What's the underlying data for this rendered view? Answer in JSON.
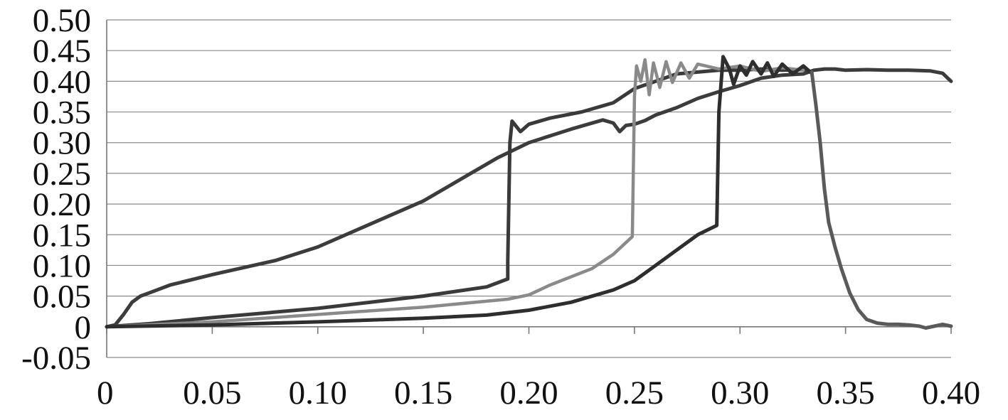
{
  "chart_data": {
    "type": "line",
    "title": "",
    "xlabel": "",
    "ylabel": "",
    "xlim": [
      0,
      0.4
    ],
    "ylim": [
      -0.05,
      0.5
    ],
    "grid": "horizontal",
    "legend": "none",
    "x_ticks": [
      "0",
      "0.05",
      "0.10",
      "0.15",
      "0.20",
      "0.25",
      "0.30",
      "0.35",
      "0.40"
    ],
    "x_tick_values": [
      0,
      0.05,
      0.1,
      0.15,
      0.2,
      0.25,
      0.3,
      0.35,
      0.4
    ],
    "y_ticks": [
      "0.50",
      "0.45",
      "0.40",
      "0.35",
      "0.30",
      "0.25",
      "0.20",
      "0.15",
      "0.10",
      "0.05",
      "0",
      "-0.05"
    ],
    "y_tick_values": [
      0.5,
      0.45,
      0.4,
      0.35,
      0.3,
      0.25,
      0.2,
      0.15,
      0.1,
      0.05,
      0,
      -0.05
    ],
    "series": [
      {
        "color": "#3c3c3c",
        "points": [
          [
            0,
            0
          ],
          [
            0.004,
            0.003
          ],
          [
            0.008,
            0.02
          ],
          [
            0.012,
            0.04
          ],
          [
            0.016,
            0.05
          ],
          [
            0.02,
            0.055
          ],
          [
            0.03,
            0.068
          ],
          [
            0.05,
            0.085
          ],
          [
            0.08,
            0.108
          ],
          [
            0.1,
            0.13
          ],
          [
            0.12,
            0.16
          ],
          [
            0.15,
            0.205
          ],
          [
            0.17,
            0.245
          ],
          [
            0.185,
            0.275
          ],
          [
            0.2,
            0.3
          ],
          [
            0.22,
            0.322
          ],
          [
            0.235,
            0.337
          ],
          [
            0.24,
            0.332
          ],
          [
            0.243,
            0.318
          ],
          [
            0.246,
            0.328
          ],
          [
            0.25,
            0.33
          ],
          [
            0.255,
            0.336
          ],
          [
            0.26,
            0.345
          ],
          [
            0.27,
            0.357
          ],
          [
            0.28,
            0.372
          ],
          [
            0.29,
            0.383
          ],
          [
            0.3,
            0.393
          ],
          [
            0.31,
            0.405
          ],
          [
            0.32,
            0.41
          ],
          [
            0.33,
            0.412
          ],
          [
            0.335,
            0.418
          ],
          [
            0.34,
            0.42
          ],
          [
            0.345,
            0.42
          ],
          [
            0.35,
            0.418
          ],
          [
            0.36,
            0.419
          ],
          [
            0.37,
            0.418
          ],
          [
            0.38,
            0.418
          ],
          [
            0.39,
            0.417
          ],
          [
            0.396,
            0.413
          ],
          [
            0.4,
            0.4
          ]
        ]
      },
      {
        "color": "#3a3a3a",
        "points": [
          [
            0,
            0
          ],
          [
            0.02,
            0.005
          ],
          [
            0.05,
            0.015
          ],
          [
            0.1,
            0.03
          ],
          [
            0.15,
            0.05
          ],
          [
            0.18,
            0.065
          ],
          [
            0.19,
            0.078
          ],
          [
            0.19,
            0.107
          ],
          [
            0.191,
            0.3
          ],
          [
            0.192,
            0.335
          ],
          [
            0.196,
            0.318
          ],
          [
            0.2,
            0.33
          ],
          [
            0.21,
            0.34
          ],
          [
            0.225,
            0.35
          ],
          [
            0.24,
            0.365
          ],
          [
            0.25,
            0.388
          ],
          [
            0.26,
            0.4
          ],
          [
            0.27,
            0.412
          ],
          [
            0.28,
            0.415
          ],
          [
            0.29,
            0.418
          ],
          [
            0.3,
            0.418
          ],
          [
            0.31,
            0.42
          ],
          [
            0.32,
            0.418
          ],
          [
            0.33,
            0.419
          ],
          [
            0.334,
            0.415
          ]
        ]
      },
      {
        "color": "#8a8a8a",
        "points": [
          [
            0,
            0
          ],
          [
            0.05,
            0.008
          ],
          [
            0.1,
            0.02
          ],
          [
            0.15,
            0.032
          ],
          [
            0.19,
            0.045
          ],
          [
            0.2,
            0.052
          ],
          [
            0.21,
            0.068
          ],
          [
            0.23,
            0.095
          ],
          [
            0.24,
            0.118
          ],
          [
            0.249,
            0.147
          ],
          [
            0.25,
            0.375
          ],
          [
            0.251,
            0.425
          ],
          [
            0.253,
            0.4
          ],
          [
            0.255,
            0.435
          ],
          [
            0.257,
            0.378
          ],
          [
            0.259,
            0.43
          ],
          [
            0.262,
            0.39
          ],
          [
            0.265,
            0.432
          ],
          [
            0.268,
            0.398
          ],
          [
            0.272,
            0.43
          ],
          [
            0.276,
            0.405
          ],
          [
            0.28,
            0.428
          ],
          [
            0.29,
            0.42
          ],
          [
            0.3,
            0.425
          ],
          [
            0.31,
            0.416
          ],
          [
            0.32,
            0.422
          ],
          [
            0.33,
            0.418
          ]
        ]
      },
      {
        "color": "#2e2e2e",
        "points": [
          [
            0,
            0
          ],
          [
            0.05,
            0.003
          ],
          [
            0.1,
            0.008
          ],
          [
            0.15,
            0.014
          ],
          [
            0.18,
            0.019
          ],
          [
            0.2,
            0.027
          ],
          [
            0.22,
            0.04
          ],
          [
            0.24,
            0.06
          ],
          [
            0.25,
            0.075
          ],
          [
            0.26,
            0.1
          ],
          [
            0.27,
            0.125
          ],
          [
            0.28,
            0.15
          ],
          [
            0.289,
            0.165
          ],
          [
            0.29,
            0.35
          ],
          [
            0.292,
            0.44
          ],
          [
            0.295,
            0.42
          ],
          [
            0.297,
            0.395
          ],
          [
            0.3,
            0.425
          ],
          [
            0.303,
            0.41
          ],
          [
            0.306,
            0.432
          ],
          [
            0.31,
            0.412
          ],
          [
            0.313,
            0.43
          ],
          [
            0.316,
            0.408
          ],
          [
            0.32,
            0.428
          ],
          [
            0.325,
            0.412
          ],
          [
            0.33,
            0.425
          ],
          [
            0.334,
            0.413
          ]
        ]
      },
      {
        "color": "#5a5a5a",
        "points": [
          [
            0.334,
            0.415
          ],
          [
            0.336,
            0.36
          ],
          [
            0.338,
            0.3
          ],
          [
            0.34,
            0.225
          ],
          [
            0.342,
            0.17
          ],
          [
            0.345,
            0.13
          ],
          [
            0.348,
            0.095
          ],
          [
            0.352,
            0.055
          ],
          [
            0.356,
            0.028
          ],
          [
            0.36,
            0.012
          ],
          [
            0.365,
            0.006
          ],
          [
            0.37,
            0.004
          ],
          [
            0.375,
            0.004
          ],
          [
            0.38,
            0.003
          ],
          [
            0.385,
            0.001
          ],
          [
            0.388,
            -0.002
          ],
          [
            0.392,
            0.001
          ],
          [
            0.396,
            0.004
          ],
          [
            0.4,
            0.001
          ]
        ]
      }
    ]
  }
}
